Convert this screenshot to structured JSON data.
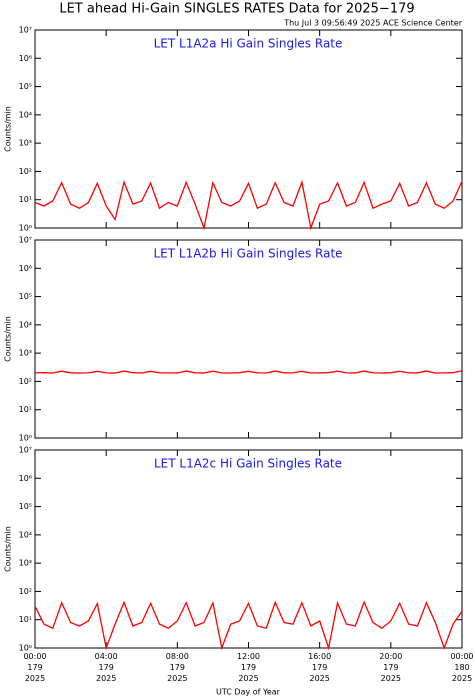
{
  "title": "LET ahead Hi-Gain SINGLES RATES Data for 2025−179",
  "timestamp": "Thu Jul  3 09:56:49 2025 ACE Science Center",
  "chart_data": [
    {
      "type": "line",
      "title": "LET L1A2a Hi Gain Singles Rate",
      "ylabel": "Counts/min",
      "log_scale": true,
      "color": "#ff0000",
      "xlim": [
        0,
        24
      ],
      "xticks": [
        0,
        4,
        8,
        12,
        16,
        20,
        24
      ],
      "ylim": [
        1,
        10000000
      ],
      "yticks": [
        {
          "value": 1,
          "label": "10⁰"
        },
        {
          "value": 10,
          "label": "10¹"
        },
        {
          "value": 100,
          "label": "10²"
        },
        {
          "value": 1000,
          "label": "10³"
        },
        {
          "value": 10000,
          "label": "10⁴"
        },
        {
          "value": 100000,
          "label": "10⁵"
        },
        {
          "value": 1000000,
          "label": "10⁶"
        },
        {
          "value": 10000000,
          "label": "10⁷"
        }
      ],
      "x": [
        0,
        0.5,
        1,
        1.5,
        2,
        2.5,
        3,
        3.5,
        4,
        4.5,
        5,
        5.5,
        6,
        6.5,
        7,
        7.5,
        8,
        8.5,
        9,
        9.5,
        10,
        10.5,
        11,
        11.5,
        12,
        12.5,
        13,
        13.5,
        14,
        14.5,
        15,
        15.5,
        16,
        16.5,
        17,
        17.5,
        18,
        18.5,
        19,
        19.5,
        20,
        20.5,
        21,
        21.5,
        22,
        22.5,
        23,
        23.5,
        24
      ],
      "values": [
        8,
        6,
        9,
        40,
        7,
        5,
        8,
        38,
        6,
        2,
        42,
        7,
        9,
        39,
        5,
        8,
        6,
        41,
        7,
        1,
        40,
        8,
        6,
        9,
        38,
        5,
        7,
        40,
        8,
        6,
        42,
        1,
        7,
        9,
        39,
        6,
        8,
        41,
        5,
        7,
        9,
        38,
        6,
        8,
        40,
        7,
        5,
        9,
        45
      ]
    },
    {
      "type": "line",
      "title": "LET L1A2b Hi Gain Singles Rate",
      "ylabel": "Counts/min",
      "log_scale": true,
      "color": "#ff0000",
      "xlim": [
        0,
        24
      ],
      "xticks": [
        0,
        4,
        8,
        12,
        16,
        20,
        24
      ],
      "ylim": [
        1,
        10000000
      ],
      "yticks": [
        {
          "value": 1,
          "label": "10⁰"
        },
        {
          "value": 10,
          "label": "10¹"
        },
        {
          "value": 100,
          "label": "10²"
        },
        {
          "value": 1000,
          "label": "10³"
        },
        {
          "value": 10000,
          "label": "10⁴"
        },
        {
          "value": 100000,
          "label": "10⁵"
        },
        {
          "value": 1000000,
          "label": "10⁶"
        },
        {
          "value": 10000000,
          "label": "10⁷"
        }
      ],
      "x": [
        0,
        0.5,
        1,
        1.5,
        2,
        2.5,
        3,
        3.5,
        4,
        4.5,
        5,
        5.5,
        6,
        6.5,
        7,
        7.5,
        8,
        8.5,
        9,
        9.5,
        10,
        10.5,
        11,
        11.5,
        12,
        12.5,
        13,
        13.5,
        14,
        14.5,
        15,
        15.5,
        16,
        16.5,
        17,
        17.5,
        18,
        18.5,
        19,
        19.5,
        20,
        20.5,
        21,
        21.5,
        22,
        22.5,
        23,
        23.5,
        24
      ],
      "values": [
        200,
        205,
        198,
        230,
        202,
        199,
        201,
        228,
        200,
        197,
        232,
        203,
        199,
        229,
        201,
        200,
        198,
        231,
        202,
        199,
        230,
        201,
        199,
        203,
        228,
        200,
        198,
        231,
        202,
        200,
        229,
        199,
        201,
        203,
        230,
        200,
        198,
        232,
        201,
        199,
        203,
        229,
        200,
        202,
        231,
        199,
        201,
        203,
        240
      ]
    },
    {
      "type": "line",
      "title": "LET L1A2c Hi Gain Singles Rate",
      "ylabel": "Counts/min",
      "xlabel": "UTC Day of Year",
      "log_scale": true,
      "color": "#ff0000",
      "xlim": [
        0,
        24
      ],
      "xticks": [
        {
          "value": 0,
          "label": "00:00\n179\n2025"
        },
        {
          "value": 4,
          "label": "04:00\n179\n2025"
        },
        {
          "value": 8,
          "label": "08:00\n179\n2025"
        },
        {
          "value": 12,
          "label": "12:00\n179\n2025"
        },
        {
          "value": 16,
          "label": "16:00\n179\n2025"
        },
        {
          "value": 20,
          "label": "20:00\n179\n2025"
        },
        {
          "value": 24,
          "label": "00:00\n180\n2025"
        }
      ],
      "ylim": [
        1,
        10000000
      ],
      "yticks": [
        {
          "value": 1,
          "label": "10⁰"
        },
        {
          "value": 10,
          "label": "10¹"
        },
        {
          "value": 100,
          "label": "10²"
        },
        {
          "value": 1000,
          "label": "10³"
        },
        {
          "value": 10000,
          "label": "10⁴"
        },
        {
          "value": 100000,
          "label": "10⁵"
        },
        {
          "value": 1000000,
          "label": "10⁶"
        },
        {
          "value": 10000000,
          "label": "10⁷"
        }
      ],
      "x": [
        0,
        0.5,
        1,
        1.5,
        2,
        2.5,
        3,
        3.5,
        4,
        4.5,
        5,
        5.5,
        6,
        6.5,
        7,
        7.5,
        8,
        8.5,
        9,
        9.5,
        10,
        10.5,
        11,
        11.5,
        12,
        12.5,
        13,
        13.5,
        14,
        14.5,
        15,
        15.5,
        16,
        16.5,
        17,
        17.5,
        18,
        18.5,
        19,
        19.5,
        20,
        20.5,
        21,
        21.5,
        22,
        22.5,
        23,
        23.5,
        24
      ],
      "values": [
        30,
        7,
        5,
        40,
        8,
        6,
        9,
        37,
        1,
        7,
        41,
        6,
        8,
        38,
        7,
        5,
        9,
        40,
        6,
        8,
        39,
        1,
        7,
        9,
        38,
        6,
        5,
        41,
        8,
        7,
        40,
        6,
        9,
        1,
        39,
        7,
        6,
        42,
        8,
        5,
        9,
        38,
        7,
        6,
        40,
        8,
        1,
        7,
        20
      ]
    }
  ]
}
